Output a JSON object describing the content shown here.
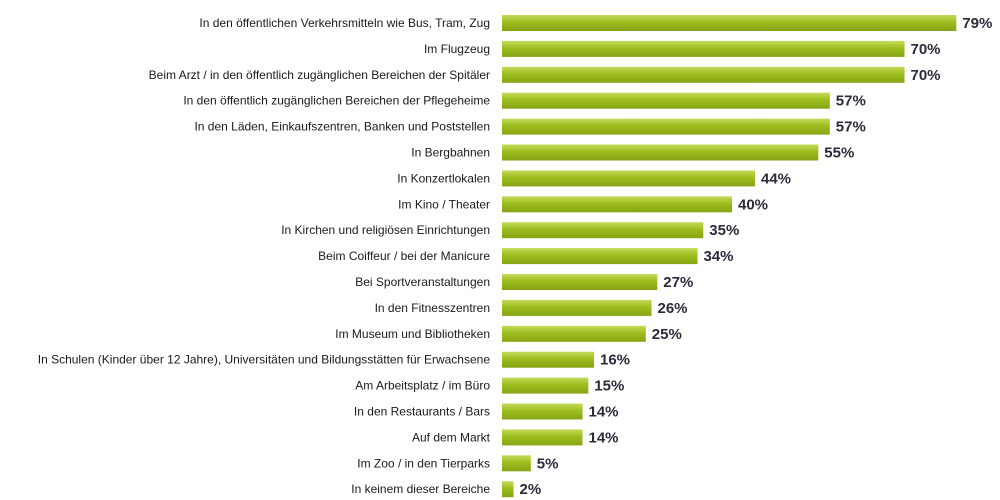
{
  "chart_data": {
    "type": "bar",
    "orientation": "horizontal",
    "unit": "%",
    "bar_color": "#9dbd1e",
    "bar_color_light": "#c4dc5c",
    "bar_color_dark": "#86a314",
    "xlim": [
      0,
      100
    ],
    "grid": false,
    "legend": "none",
    "categories": [
      "In den öffentlichen Verkehrsmitteln wie Bus, Tram, Zug",
      "Im Flugzeug",
      "Beim Arzt / in den öffentlich zugänglichen Bereichen der Spitäler",
      "In den öffentlich zugänglichen Bereichen der Pflegeheime",
      "In den Läden, Einkaufszentren, Banken und Poststellen",
      "In Bergbahnen",
      "In Konzertlokalen",
      "Im Kino / Theater",
      "In Kirchen und religiösen Einrichtungen",
      "Beim Coiffeur / bei der Manicure",
      "Bei Sportveranstaltungen",
      "In den Fitnesszentren",
      "Im Museum und Bibliotheken",
      "In Schulen (Kinder über 12 Jahre), Universitäten und Bildungsstätten für Erwachsene",
      "Am Arbeitsplatz / im Büro",
      "In den Restaurants / Bars",
      "Auf dem Markt",
      "Im Zoo / in den Tierparks",
      "In keinem dieser Bereiche"
    ],
    "values": [
      79,
      70,
      70,
      57,
      57,
      55,
      44,
      40,
      35,
      34,
      27,
      26,
      25,
      16,
      15,
      14,
      14,
      5,
      2
    ],
    "value_labels": [
      "79%",
      "70%",
      "70%",
      "57%",
      "57%",
      "55%",
      "44%",
      "40%",
      "35%",
      "34%",
      "27%",
      "26%",
      "25%",
      "16%",
      "15%",
      "14%",
      "14%",
      "5%",
      "2%"
    ]
  }
}
